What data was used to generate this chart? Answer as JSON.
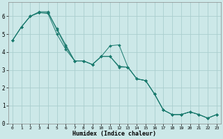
{
  "xlabel": "Humidex (Indice chaleur)",
  "ylabel": "",
  "bg_color": "#cce8e8",
  "grid_color": "#aacece",
  "line_color": "#1a7a6e",
  "xlim": [
    -0.5,
    23.5
  ],
  "ylim": [
    0,
    6.8
  ],
  "yticks": [
    0,
    1,
    2,
    3,
    4,
    5,
    6
  ],
  "xticks": [
    0,
    1,
    2,
    3,
    4,
    5,
    6,
    7,
    8,
    9,
    10,
    11,
    12,
    13,
    14,
    15,
    16,
    17,
    18,
    19,
    20,
    21,
    22,
    23
  ],
  "series": [
    [
      4.65,
      5.4,
      6.0,
      6.2,
      6.2,
      5.3,
      4.4,
      3.5,
      3.5,
      3.3,
      3.75,
      4.35,
      4.4,
      3.15,
      2.5,
      2.4,
      1.65,
      0.75,
      0.5,
      0.5,
      0.65,
      0.5,
      0.3,
      0.5
    ],
    [
      4.65,
      5.4,
      6.0,
      6.25,
      6.25,
      5.25,
      4.3,
      3.5,
      3.5,
      3.3,
      3.75,
      3.75,
      3.2,
      3.15,
      2.5,
      2.4,
      1.65,
      0.75,
      0.5,
      0.5,
      0.65,
      0.5,
      0.3,
      0.5
    ],
    [
      4.65,
      5.4,
      6.0,
      6.2,
      6.15,
      5.0,
      4.15,
      3.5,
      3.5,
      3.3,
      3.75,
      3.75,
      3.15,
      3.15,
      2.5,
      2.4,
      1.65,
      0.75,
      0.5,
      0.5,
      0.65,
      0.5,
      0.3,
      0.5
    ]
  ]
}
